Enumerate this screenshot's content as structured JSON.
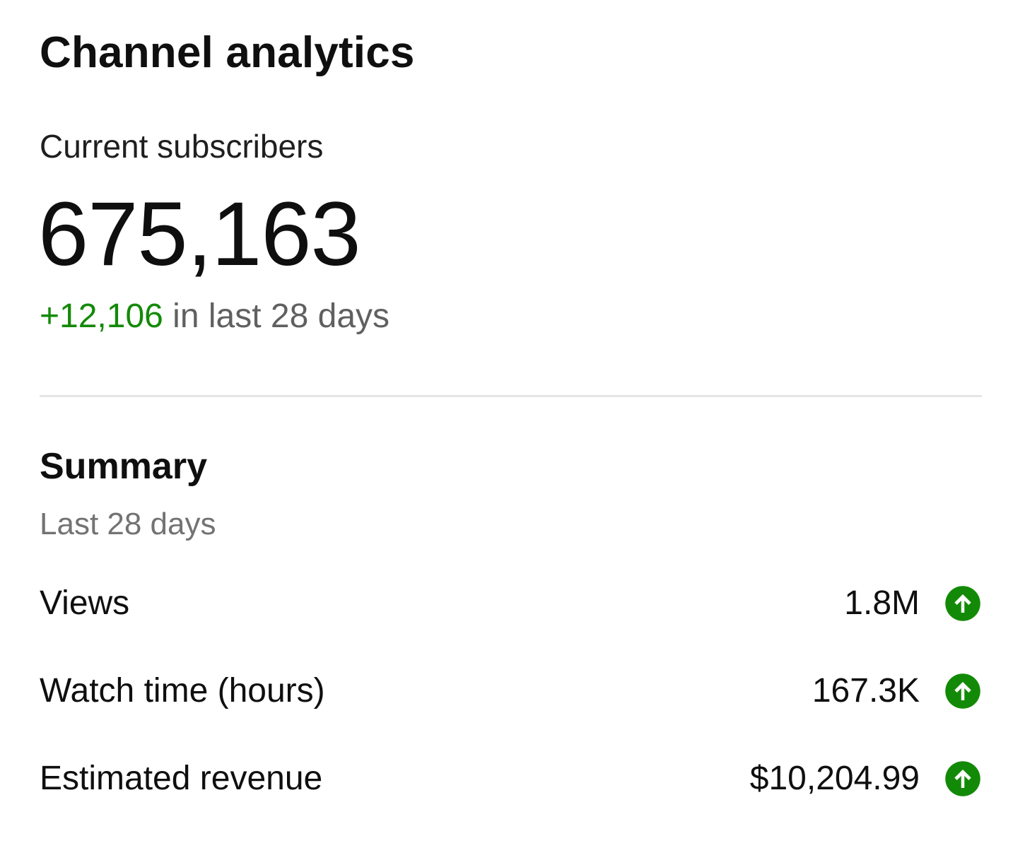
{
  "header": {
    "title": "Channel analytics"
  },
  "subscribers": {
    "label": "Current subscribers",
    "value": "675,163",
    "change": "+12,106",
    "change_suffix": " in last 28 days"
  },
  "summary": {
    "title": "Summary",
    "period": "Last 28 days",
    "metrics": [
      {
        "label": "Views",
        "value": "1.8M",
        "trend_icon": "arrow-up-circle-icon"
      },
      {
        "label": "Watch time (hours)",
        "value": "167.3K",
        "trend_icon": "arrow-up-circle-icon"
      },
      {
        "label": "Estimated revenue",
        "value": "$10,204.99",
        "trend_icon": "arrow-up-circle-icon"
      }
    ]
  },
  "colors": {
    "positive": "#138a07",
    "secondary_text": "#606060",
    "divider": "#e5e5e5"
  }
}
